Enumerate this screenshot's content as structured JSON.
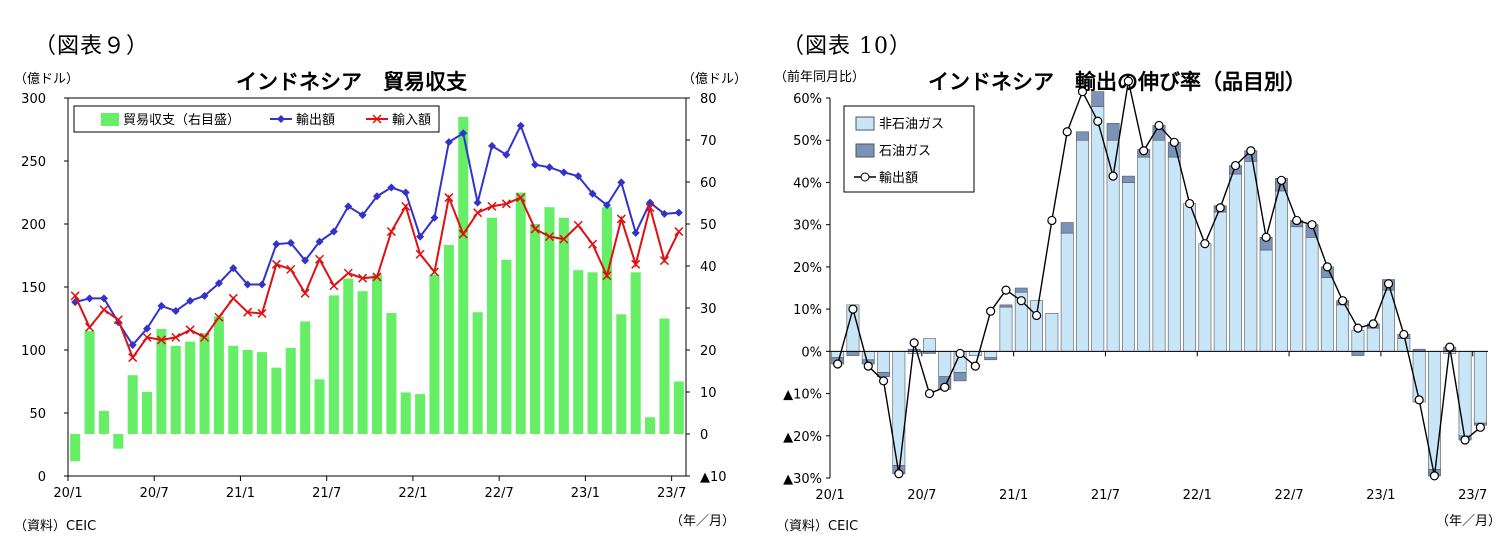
{
  "left": {
    "figure_label": "（図表９）",
    "title": "インドネシア　貿易収支",
    "left_unit": "（億ドル）",
    "right_unit": "（億ドル）",
    "source": "（資料）CEIC",
    "x_unit": "（年／月）"
  },
  "right": {
    "figure_label": "（図表 10）",
    "title": "インドネシア　輸出の伸び率（品目別）",
    "y_unit": "（前年同月比）",
    "source": "（資料）CEIC",
    "x_unit": "（年／月）"
  },
  "colors": {
    "trade_balance": "#66ee66",
    "exports_line": "#3333cc",
    "imports_line": "#dd1111",
    "non_oil_gas": "#c8e6f8",
    "oil_gas": "#7b93b8"
  },
  "chart_data": [
    {
      "type": "bar+line",
      "title": "インドネシア　貿易収支",
      "x_tick_labels": [
        "20/1",
        "20/7",
        "21/1",
        "21/7",
        "22/1",
        "22/7",
        "23/1",
        "23/7"
      ],
      "months": [
        "20/1",
        "20/2",
        "20/3",
        "20/4",
        "20/5",
        "20/6",
        "20/7",
        "20/8",
        "20/9",
        "20/10",
        "20/11",
        "20/12",
        "21/1",
        "21/2",
        "21/3",
        "21/4",
        "21/5",
        "21/6",
        "21/7",
        "21/8",
        "21/9",
        "21/10",
        "21/11",
        "21/12",
        "22/1",
        "22/2",
        "22/3",
        "22/4",
        "22/5",
        "22/6",
        "22/7",
        "22/8",
        "22/9",
        "22/10",
        "22/11",
        "22/12",
        "23/1",
        "23/2",
        "23/3",
        "23/4",
        "23/5",
        "23/6",
        "23/7"
      ],
      "y_left": {
        "min": 0,
        "max": 300,
        "ticks": [
          0,
          50,
          100,
          150,
          200,
          250,
          300
        ]
      },
      "y_right": {
        "min": -10,
        "max": 80,
        "ticks": [
          -10,
          0,
          10,
          20,
          30,
          40,
          50,
          60,
          70,
          80
        ],
        "tick_labels": [
          "▲10",
          "0",
          "10",
          "20",
          "30",
          "40",
          "50",
          "60",
          "70",
          "80"
        ]
      },
      "legend": {
        "position": "top",
        "labels": [
          "貿易収支（右目盛）",
          "輸出額",
          "輸入額"
        ]
      },
      "series": [
        {
          "name": "貿易収支（右目盛）",
          "kind": "bar",
          "axis": "right",
          "values": [
            -6.5,
            24.5,
            5.5,
            -3.5,
            14,
            10,
            25,
            21,
            22,
            24,
            28,
            21,
            20,
            19.5,
            15.8,
            20.5,
            26.8,
            13,
            33,
            37,
            34,
            38,
            28.8,
            9.9,
            9.5,
            38,
            45,
            75.5,
            29,
            51.5,
            41.5,
            57.5,
            50,
            54,
            51.5,
            39,
            38.5,
            54,
            28.5,
            38.5,
            4,
            27.5,
            12.5
          ]
        },
        {
          "name": "輸出額",
          "kind": "line",
          "axis": "left",
          "values": [
            138,
            141,
            141,
            122,
            104,
            117,
            135,
            131,
            139,
            143,
            153,
            165,
            152,
            152,
            184,
            185,
            171,
            186,
            194,
            214,
            207,
            222,
            229,
            225,
            190,
            205,
            265,
            272,
            217,
            262,
            255,
            278,
            247,
            245,
            241,
            238,
            224,
            215,
            233,
            193,
            217,
            208,
            209
          ]
        },
        {
          "name": "輸入額",
          "kind": "line",
          "axis": "left",
          "values": [
            143,
            118,
            132,
            124,
            94,
            110,
            108,
            110,
            116,
            110,
            126,
            141,
            130,
            129,
            168,
            164,
            145,
            172,
            151,
            161,
            157,
            158,
            194,
            214,
            176,
            162,
            221,
            192,
            209,
            214,
            216,
            221,
            196,
            190,
            188,
            199,
            184,
            159,
            204,
            168,
            213,
            171,
            194
          ]
        }
      ]
    },
    {
      "type": "stacked-bar+line",
      "title": "インドネシア　輸出の伸び率（品目別）",
      "x_tick_labels": [
        "20/1",
        "20/7",
        "21/1",
        "21/7",
        "22/1",
        "22/7",
        "23/1",
        "23/7"
      ],
      "months": [
        "20/1",
        "20/2",
        "20/3",
        "20/4",
        "20/5",
        "20/6",
        "20/7",
        "20/8",
        "20/9",
        "20/10",
        "20/11",
        "20/12",
        "21/1",
        "21/2",
        "21/3",
        "21/4",
        "21/5",
        "21/6",
        "21/7",
        "21/8",
        "21/9",
        "21/10",
        "21/11",
        "21/12",
        "22/1",
        "22/2",
        "22/3",
        "22/4",
        "22/5",
        "22/6",
        "22/7",
        "22/8",
        "22/9",
        "22/10",
        "22/11",
        "22/12",
        "23/1",
        "23/2",
        "23/3",
        "23/4",
        "23/5",
        "23/6",
        "23/7"
      ],
      "y": {
        "min": -30,
        "max": 60,
        "ticks": [
          -30,
          -20,
          -10,
          0,
          10,
          20,
          30,
          40,
          50,
          60
        ],
        "tick_labels": [
          "▲30%",
          "▲20%",
          "▲10%",
          "0%",
          "10%",
          "20%",
          "30%",
          "40%",
          "50%",
          "60%"
        ]
      },
      "legend": {
        "position": "top-left",
        "labels": [
          "非石油ガス",
          "石油ガス",
          "輸出額"
        ]
      },
      "series": [
        {
          "name": "非石油ガス",
          "kind": "bar",
          "values": [
            -1.5,
            11,
            -2,
            -5,
            -27,
            -0.5,
            3,
            -6,
            -5,
            -1,
            -1.5,
            10.5,
            14,
            12,
            9,
            28,
            50,
            58,
            50,
            40,
            46,
            50,
            46,
            35,
            25.5,
            33,
            42,
            45,
            24,
            38,
            29.5,
            27,
            17.5,
            11,
            5,
            5.5,
            14.5,
            3,
            -12,
            -28,
            -0.5,
            -20,
            -17
          ]
        },
        {
          "name": "石油ガス",
          "kind": "bar",
          "values": [
            -1.5,
            -1,
            -1,
            -1,
            -2,
            0.5,
            -0.5,
            -3,
            -2,
            0,
            -0.5,
            0.5,
            1,
            0,
            0,
            2.5,
            2,
            3.5,
            4,
            1.5,
            1.8,
            3.5,
            3.5,
            0,
            0,
            1.5,
            2,
            2.5,
            3,
            3,
            1.5,
            3,
            2.5,
            1,
            -1,
            1,
            2.5,
            1,
            0.5,
            -1.5,
            1,
            -1,
            -0.5
          ]
        },
        {
          "name": "輸出額",
          "kind": "line",
          "values": [
            -3,
            10,
            -3.5,
            -7,
            -29,
            2,
            -10,
            -8.5,
            -0.5,
            -3.5,
            9.5,
            14.5,
            12,
            8.5,
            31,
            52,
            61.5,
            54.5,
            41.5,
            64,
            47.5,
            53.5,
            49.5,
            35,
            25.5,
            34,
            44,
            47.5,
            27,
            40.5,
            31,
            30,
            20,
            12,
            5.5,
            6.5,
            16,
            4,
            -11.5,
            -29.5,
            1,
            -21,
            -18
          ]
        }
      ]
    }
  ]
}
